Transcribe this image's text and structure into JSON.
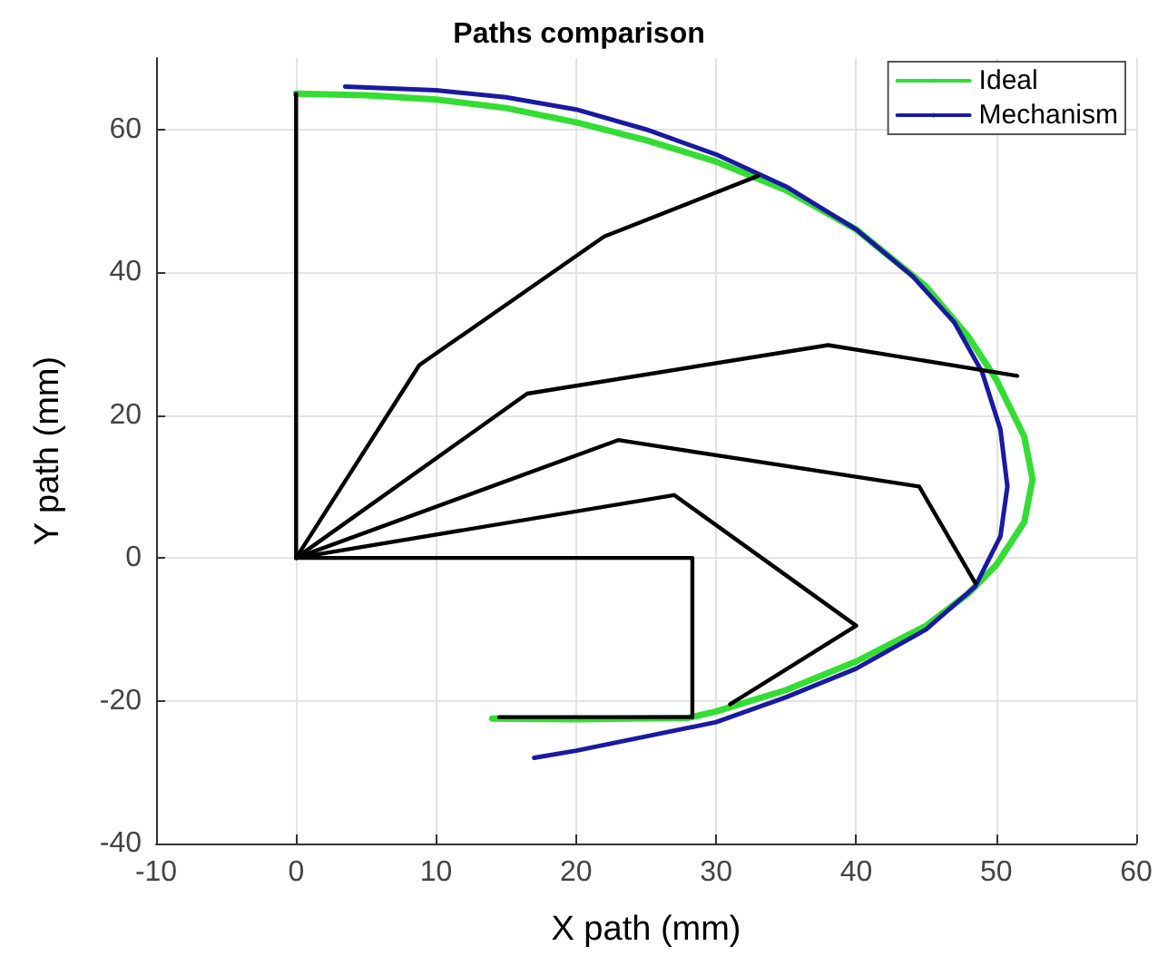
{
  "chart_data": {
    "type": "line",
    "title": "Paths comparison",
    "xlabel": "X path (mm)",
    "ylabel": "Y path (mm)",
    "xlim": [
      -10,
      60
    ],
    "ylim": [
      -40,
      70
    ],
    "xticks": [
      -10,
      0,
      10,
      20,
      30,
      40,
      50,
      60
    ],
    "yticks": [
      -40,
      -20,
      0,
      20,
      40,
      60
    ],
    "grid": true,
    "legend": "top right",
    "marker": "none",
    "line_style": "solid",
    "series": [
      {
        "name": "Ideal",
        "color": "#33dd33",
        "x": [
          0,
          5,
          10,
          15,
          20,
          25,
          30,
          35,
          40,
          45,
          48,
          50,
          52,
          52.6,
          52,
          50,
          48,
          45,
          40,
          35,
          30,
          28,
          20,
          14
        ],
        "values": [
          65,
          64.8,
          64.2,
          63,
          61,
          58.5,
          55.5,
          51.5,
          46,
          38,
          31,
          25,
          17,
          11,
          5,
          -1,
          -5,
          -9.5,
          -14.5,
          -18.5,
          -21.5,
          -22.4,
          -22.6,
          -22.5
        ]
      },
      {
        "name": "Mechanism",
        "color": "#1a1aa0",
        "x": [
          3.5,
          10,
          15,
          20,
          25,
          30,
          35,
          40,
          44,
          47,
          49,
          50.3,
          50.8,
          50.3,
          48.5,
          45,
          40,
          35,
          30,
          25,
          20,
          17
        ],
        "values": [
          66,
          65.5,
          64.5,
          62.8,
          60,
          56.5,
          52,
          46,
          39.5,
          33,
          26,
          18,
          10,
          3,
          -4,
          -10,
          -15.5,
          -19.5,
          -23,
          -25,
          -27,
          -28
        ]
      },
      {
        "color": "#000000",
        "x": [
          0,
          0
        ],
        "values": [
          0,
          65
        ]
      },
      {
        "color": "#000000",
        "x": [
          0,
          8.8,
          22,
          33
        ],
        "values": [
          0,
          27,
          45,
          53.5
        ]
      },
      {
        "color": "#000000",
        "x": [
          0,
          16.5,
          38,
          51.5
        ],
        "values": [
          0,
          23,
          29.8,
          25.5
        ]
      },
      {
        "color": "#000000",
        "x": [
          0,
          23,
          44.5,
          48.5
        ],
        "values": [
          0,
          16.5,
          10,
          -3.5
        ]
      },
      {
        "color": "#000000",
        "x": [
          0,
          27,
          40,
          31
        ],
        "values": [
          0,
          8.8,
          -9.5,
          -20.5
        ]
      },
      {
        "color": "#000000",
        "x": [
          0,
          28.3,
          28.3,
          14.5
        ],
        "values": [
          0,
          0,
          -22.3,
          -22.3
        ]
      }
    ]
  }
}
